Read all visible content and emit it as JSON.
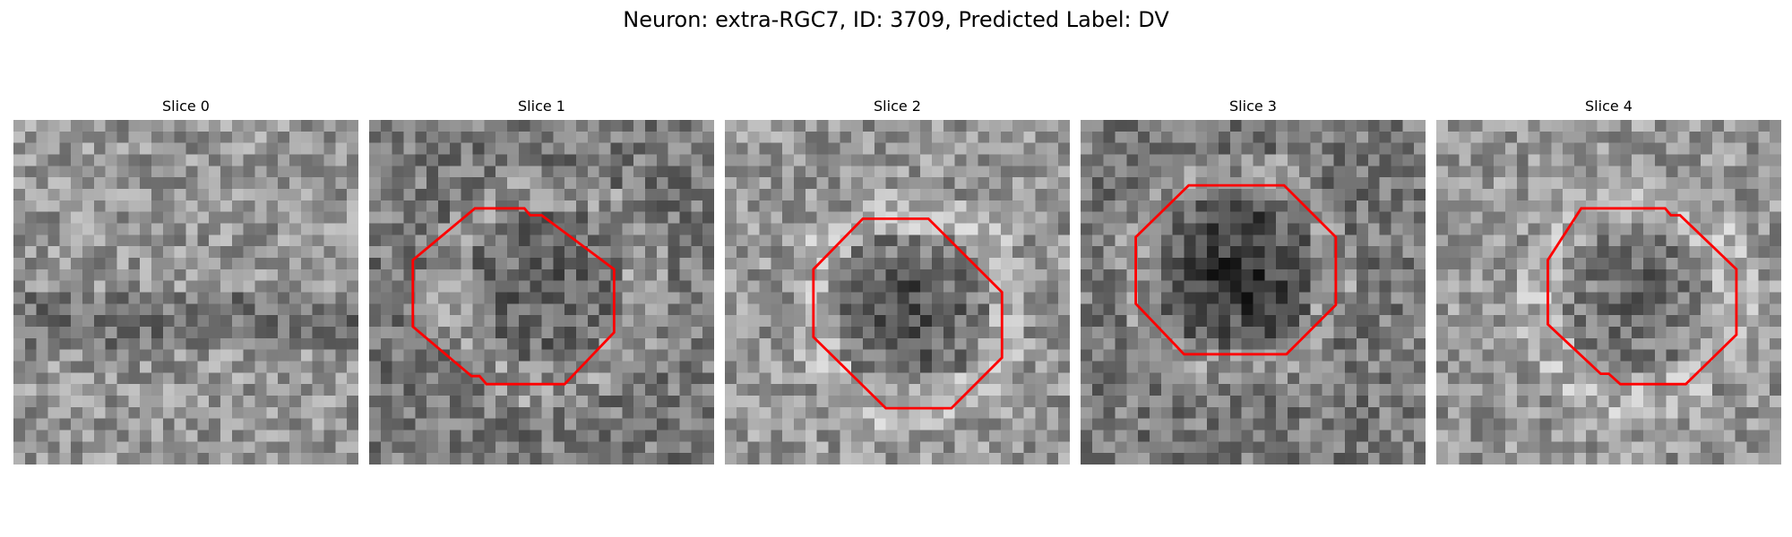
{
  "figure": {
    "title": "Neuron: extra-RGC7, ID: 3709, Predicted Label: DV"
  },
  "panels": [
    {
      "title": "Slice 0",
      "contour": false,
      "brightness": "bright",
      "dark_blob": "none"
    },
    {
      "title": "Slice 1",
      "contour": true,
      "brightness": "medium",
      "dark_blob": "faint"
    },
    {
      "title": "Slice 2",
      "contour": true,
      "brightness": "bright",
      "dark_blob": "strong"
    },
    {
      "title": "Slice 3",
      "contour": true,
      "brightness": "medium",
      "dark_blob": "strong"
    },
    {
      "title": "Slice 4",
      "contour": true,
      "brightness": "bright",
      "dark_blob": "medium"
    }
  ],
  "colors": {
    "contour": "#ff0000",
    "background": "#ffffff"
  }
}
